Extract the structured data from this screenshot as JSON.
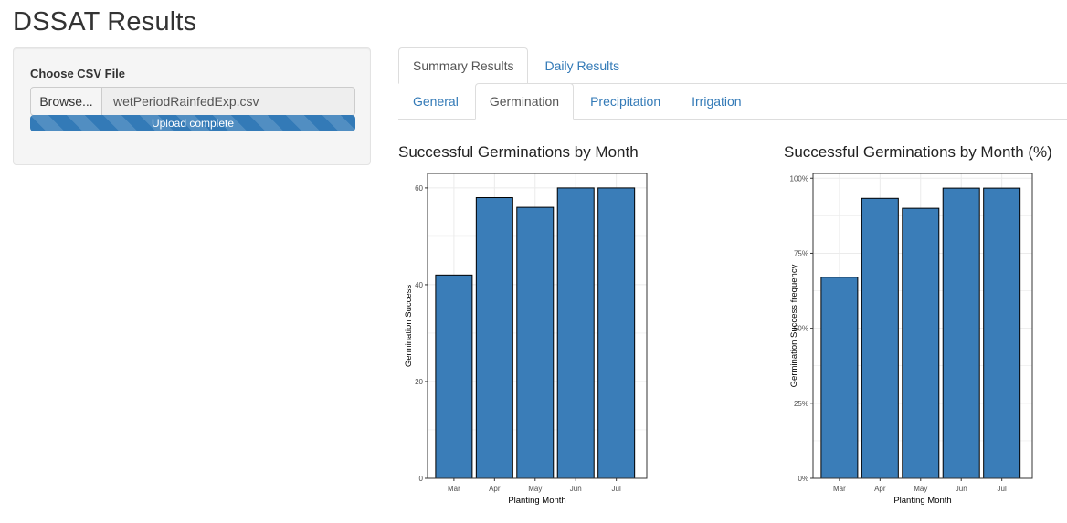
{
  "page": {
    "title": "DSSAT Results"
  },
  "sidebar": {
    "file_input_label": "Choose CSV File",
    "browse_label": "Browse...",
    "file_name": "wetPeriodRainfedExp.csv",
    "upload_status": "Upload complete",
    "upload_progress_percent": 100
  },
  "tabs": {
    "top": [
      {
        "label": "Summary Results",
        "active": true
      },
      {
        "label": "Daily Results",
        "active": false
      }
    ],
    "sub": [
      {
        "label": "General",
        "active": false
      },
      {
        "label": "Germination",
        "active": true
      },
      {
        "label": "Precipitation",
        "active": false
      },
      {
        "label": "Irrigation",
        "active": false
      }
    ]
  },
  "colors": {
    "bar_fill": "#3a7db8",
    "bar_stroke": "#000000",
    "grid": "#ebebeb",
    "link": "#337ab7"
  },
  "chart_data": [
    {
      "type": "bar",
      "title": "Successful Germinations by Month",
      "xlabel": "Planting Month",
      "ylabel": "Germination Success",
      "categories": [
        "Mar",
        "Apr",
        "May",
        "Jun",
        "Jul"
      ],
      "values": [
        42,
        58,
        56,
        60,
        60
      ],
      "ylim": [
        0,
        63
      ],
      "yticks": [
        0,
        20,
        40,
        60
      ],
      "ytick_labels": [
        "0",
        "20",
        "40",
        "60"
      ]
    },
    {
      "type": "bar",
      "title": "Successful Germinations by Month (%)",
      "xlabel": "Planting Month",
      "ylabel": "Germination Success frequency",
      "categories": [
        "Mar",
        "Apr",
        "May",
        "Jun",
        "Jul"
      ],
      "values": [
        0.67,
        0.933,
        0.9,
        0.967,
        0.967
      ],
      "ylim": [
        0,
        1.016
      ],
      "yticks": [
        0,
        0.25,
        0.5,
        0.75,
        1.0
      ],
      "ytick_labels": [
        "0%",
        "25%",
        "50%",
        "75%",
        "100%"
      ]
    }
  ]
}
